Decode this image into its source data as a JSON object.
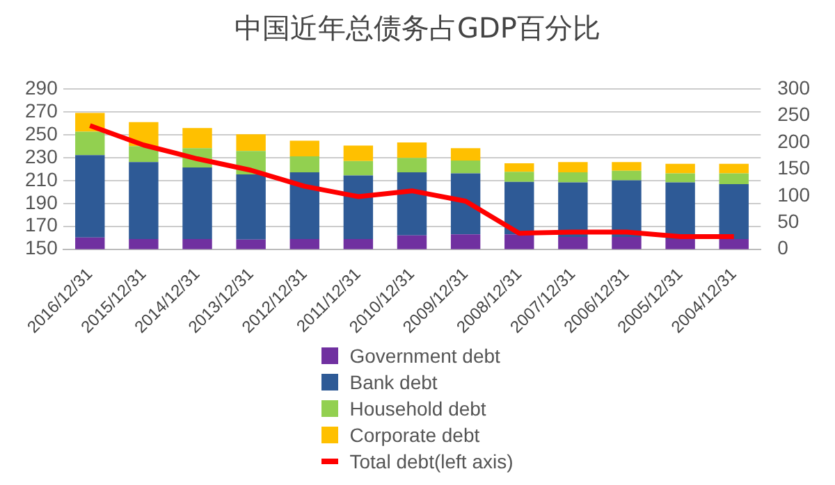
{
  "chart_data": {
    "type": "bar",
    "title": "中国近年总债务占GDP百分比",
    "categories": [
      "2016/12/31",
      "2015/12/31",
      "2014/12/31",
      "2013/12/31",
      "2012/12/31",
      "2011/12/31",
      "2010/12/31",
      "2009/12/31",
      "2008/12/31",
      "2007/12/31",
      "2006/12/31",
      "2005/12/31",
      "2004/12/31"
    ],
    "stacked": true,
    "series": [
      {
        "name": "Government debt",
        "color": "#7030a0",
        "axis": "y2",
        "values": [
          22,
          19,
          19,
          18,
          19,
          19,
          26,
          28,
          28,
          23,
          23,
          19,
          19
        ]
      },
      {
        "name": "Bank debt",
        "color": "#2e5a96",
        "axis": "y2",
        "values": [
          154,
          144,
          134,
          122,
          125,
          119,
          118,
          114,
          98,
          102,
          106,
          106,
          103
        ]
      },
      {
        "name": "Household debt",
        "color": "#92d050",
        "axis": "y2",
        "values": [
          44,
          30,
          36,
          44,
          30,
          27,
          27,
          24,
          19,
          19,
          18,
          17,
          20
        ]
      },
      {
        "name": "Corporate debt",
        "color": "#ffc000",
        "axis": "y2",
        "values": [
          35,
          45,
          38,
          31,
          29,
          29,
          29,
          23,
          16,
          19,
          16,
          18,
          18
        ]
      },
      {
        "name": "Total debt(left axis)",
        "type": "line",
        "color": "#ff0000",
        "axis": "y",
        "values": [
          258,
          241,
          229,
          219,
          205,
          196,
          201,
          192,
          164,
          165,
          165,
          161,
          161
        ]
      }
    ],
    "ylim": [
      150,
      290
    ],
    "yticks": [
      150,
      170,
      190,
      210,
      230,
      250,
      270,
      290
    ],
    "y2lim": [
      0,
      300
    ],
    "y2ticks": [
      0,
      50,
      100,
      150,
      200,
      250,
      300
    ],
    "grid": "y",
    "legend": "bottom",
    "marker": "none"
  }
}
